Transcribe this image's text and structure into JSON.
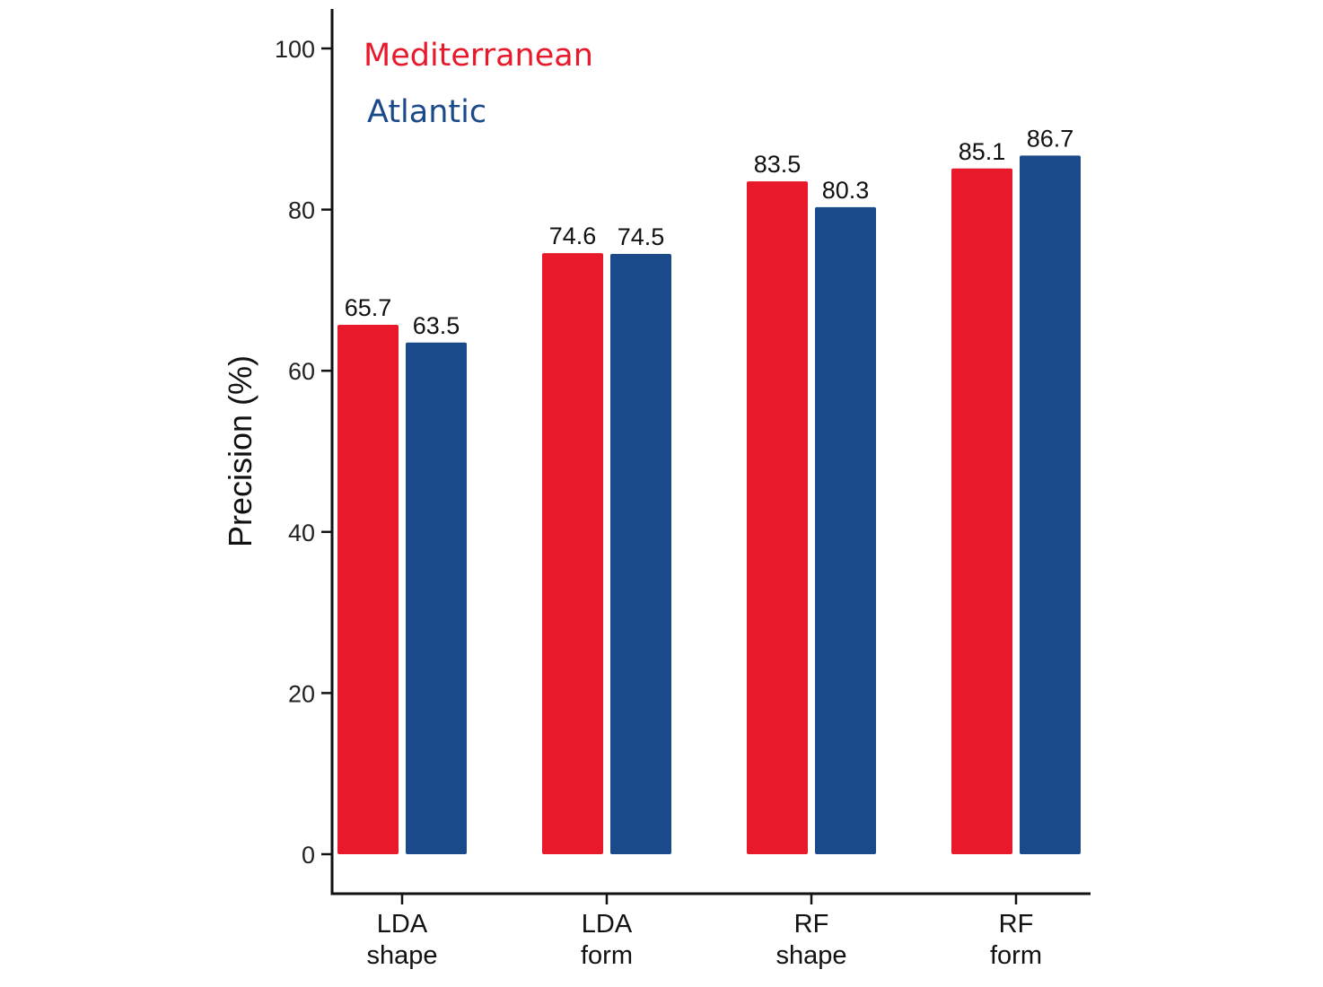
{
  "chart_data": {
    "type": "bar",
    "categories": [
      [
        "LDA",
        "shape"
      ],
      [
        "LDA",
        "form"
      ],
      [
        "RF",
        "shape"
      ],
      [
        "RF",
        "form"
      ]
    ],
    "series": [
      {
        "name": "Mediterranean",
        "color": "#e8192a",
        "values": [
          65.7,
          74.6,
          83.5,
          85.1
        ]
      },
      {
        "name": "Atlantic",
        "color": "#1a4a8a",
        "values": [
          63.5,
          74.5,
          80.3,
          86.7
        ]
      }
    ],
    "value_labels": [
      [
        "65.7",
        "74.6",
        "83.5",
        "85.1"
      ],
      [
        "63.5",
        "74.5",
        "80.3",
        "86.7"
      ]
    ],
    "title": "",
    "xlabel": "",
    "ylabel": "Precision (%)",
    "ylim": [
      0,
      100
    ],
    "yticks": [
      0,
      20,
      40,
      60,
      80,
      100
    ],
    "ytick_labels": [
      "0",
      "20",
      "40",
      "60",
      "80",
      "100"
    ],
    "grid": false,
    "legend_position": "top-left"
  }
}
